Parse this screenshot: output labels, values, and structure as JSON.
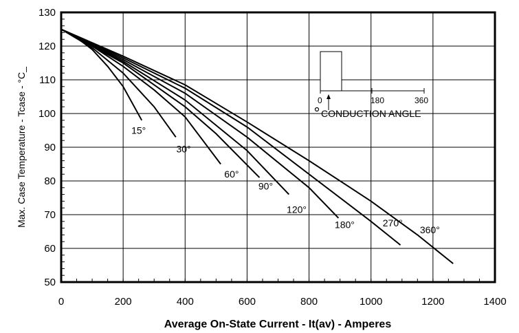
{
  "chart_data": {
    "type": "line",
    "title": "",
    "xlabel": "Average On-State Current - It(av) - Amperes",
    "ylabel": "Max. Case Temperature - Tcase - °C_",
    "xlim": [
      0,
      1400
    ],
    "ylim": [
      50,
      130
    ],
    "xticks": [
      0,
      200,
      400,
      600,
      800,
      1000,
      1200,
      1400
    ],
    "yticks": [
      50,
      60,
      70,
      80,
      90,
      100,
      110,
      120,
      130
    ],
    "grid": true,
    "series": [
      {
        "name": "15°",
        "points": [
          [
            0,
            125
          ],
          [
            50,
            122.5
          ],
          [
            100,
            119
          ],
          [
            150,
            114
          ],
          [
            200,
            108
          ],
          [
            260,
            98
          ]
        ]
      },
      {
        "name": "30°",
        "points": [
          [
            0,
            125
          ],
          [
            100,
            119.5
          ],
          [
            200,
            112
          ],
          [
            300,
            102
          ],
          [
            370,
            93
          ]
        ]
      },
      {
        "name": "60°",
        "points": [
          [
            0,
            125
          ],
          [
            100,
            120
          ],
          [
            200,
            114
          ],
          [
            300,
            107
          ],
          [
            400,
            99
          ],
          [
            515,
            85
          ]
        ]
      },
      {
        "name": "90°",
        "points": [
          [
            0,
            125
          ],
          [
            200,
            115
          ],
          [
            400,
            102
          ],
          [
            500,
            94
          ],
          [
            640,
            81
          ]
        ]
      },
      {
        "name": "120°",
        "points": [
          [
            0,
            125
          ],
          [
            200,
            115.5
          ],
          [
            400,
            104
          ],
          [
            600,
            89
          ],
          [
            735,
            76
          ]
        ]
      },
      {
        "name": "180°",
        "points": [
          [
            0,
            125
          ],
          [
            200,
            116
          ],
          [
            400,
            106
          ],
          [
            600,
            93
          ],
          [
            800,
            78
          ],
          [
            895,
            69
          ]
        ]
      },
      {
        "name": "270°",
        "points": [
          [
            0,
            125
          ],
          [
            200,
            116.5
          ],
          [
            400,
            107.5
          ],
          [
            600,
            96
          ],
          [
            800,
            82
          ],
          [
            1000,
            68
          ],
          [
            1095,
            61
          ]
        ]
      },
      {
        "name": "360°",
        "points": [
          [
            0,
            125
          ],
          [
            200,
            117
          ],
          [
            400,
            108.5
          ],
          [
            600,
            97.5
          ],
          [
            800,
            86
          ],
          [
            1000,
            74
          ],
          [
            1150,
            64
          ],
          [
            1265,
            55.5
          ]
        ]
      }
    ],
    "curve_labels": [
      {
        "text": "15°",
        "x": 250,
        "y": 94
      },
      {
        "text": "30°",
        "x": 395,
        "y": 88.5
      },
      {
        "text": "60°",
        "x": 550,
        "y": 81
      },
      {
        "text": "90°",
        "x": 660,
        "y": 77.5
      },
      {
        "text": "120°",
        "x": 760,
        "y": 70.5
      },
      {
        "text": "180°",
        "x": 915,
        "y": 66
      },
      {
        "text": "270°",
        "x": 1070,
        "y": 66.5
      },
      {
        "text": "360°",
        "x": 1190,
        "y": 64.5
      }
    ],
    "inset": {
      "ticks": [
        "0",
        "180",
        "360"
      ],
      "caption": "CONDUCTION ANGLE"
    }
  }
}
